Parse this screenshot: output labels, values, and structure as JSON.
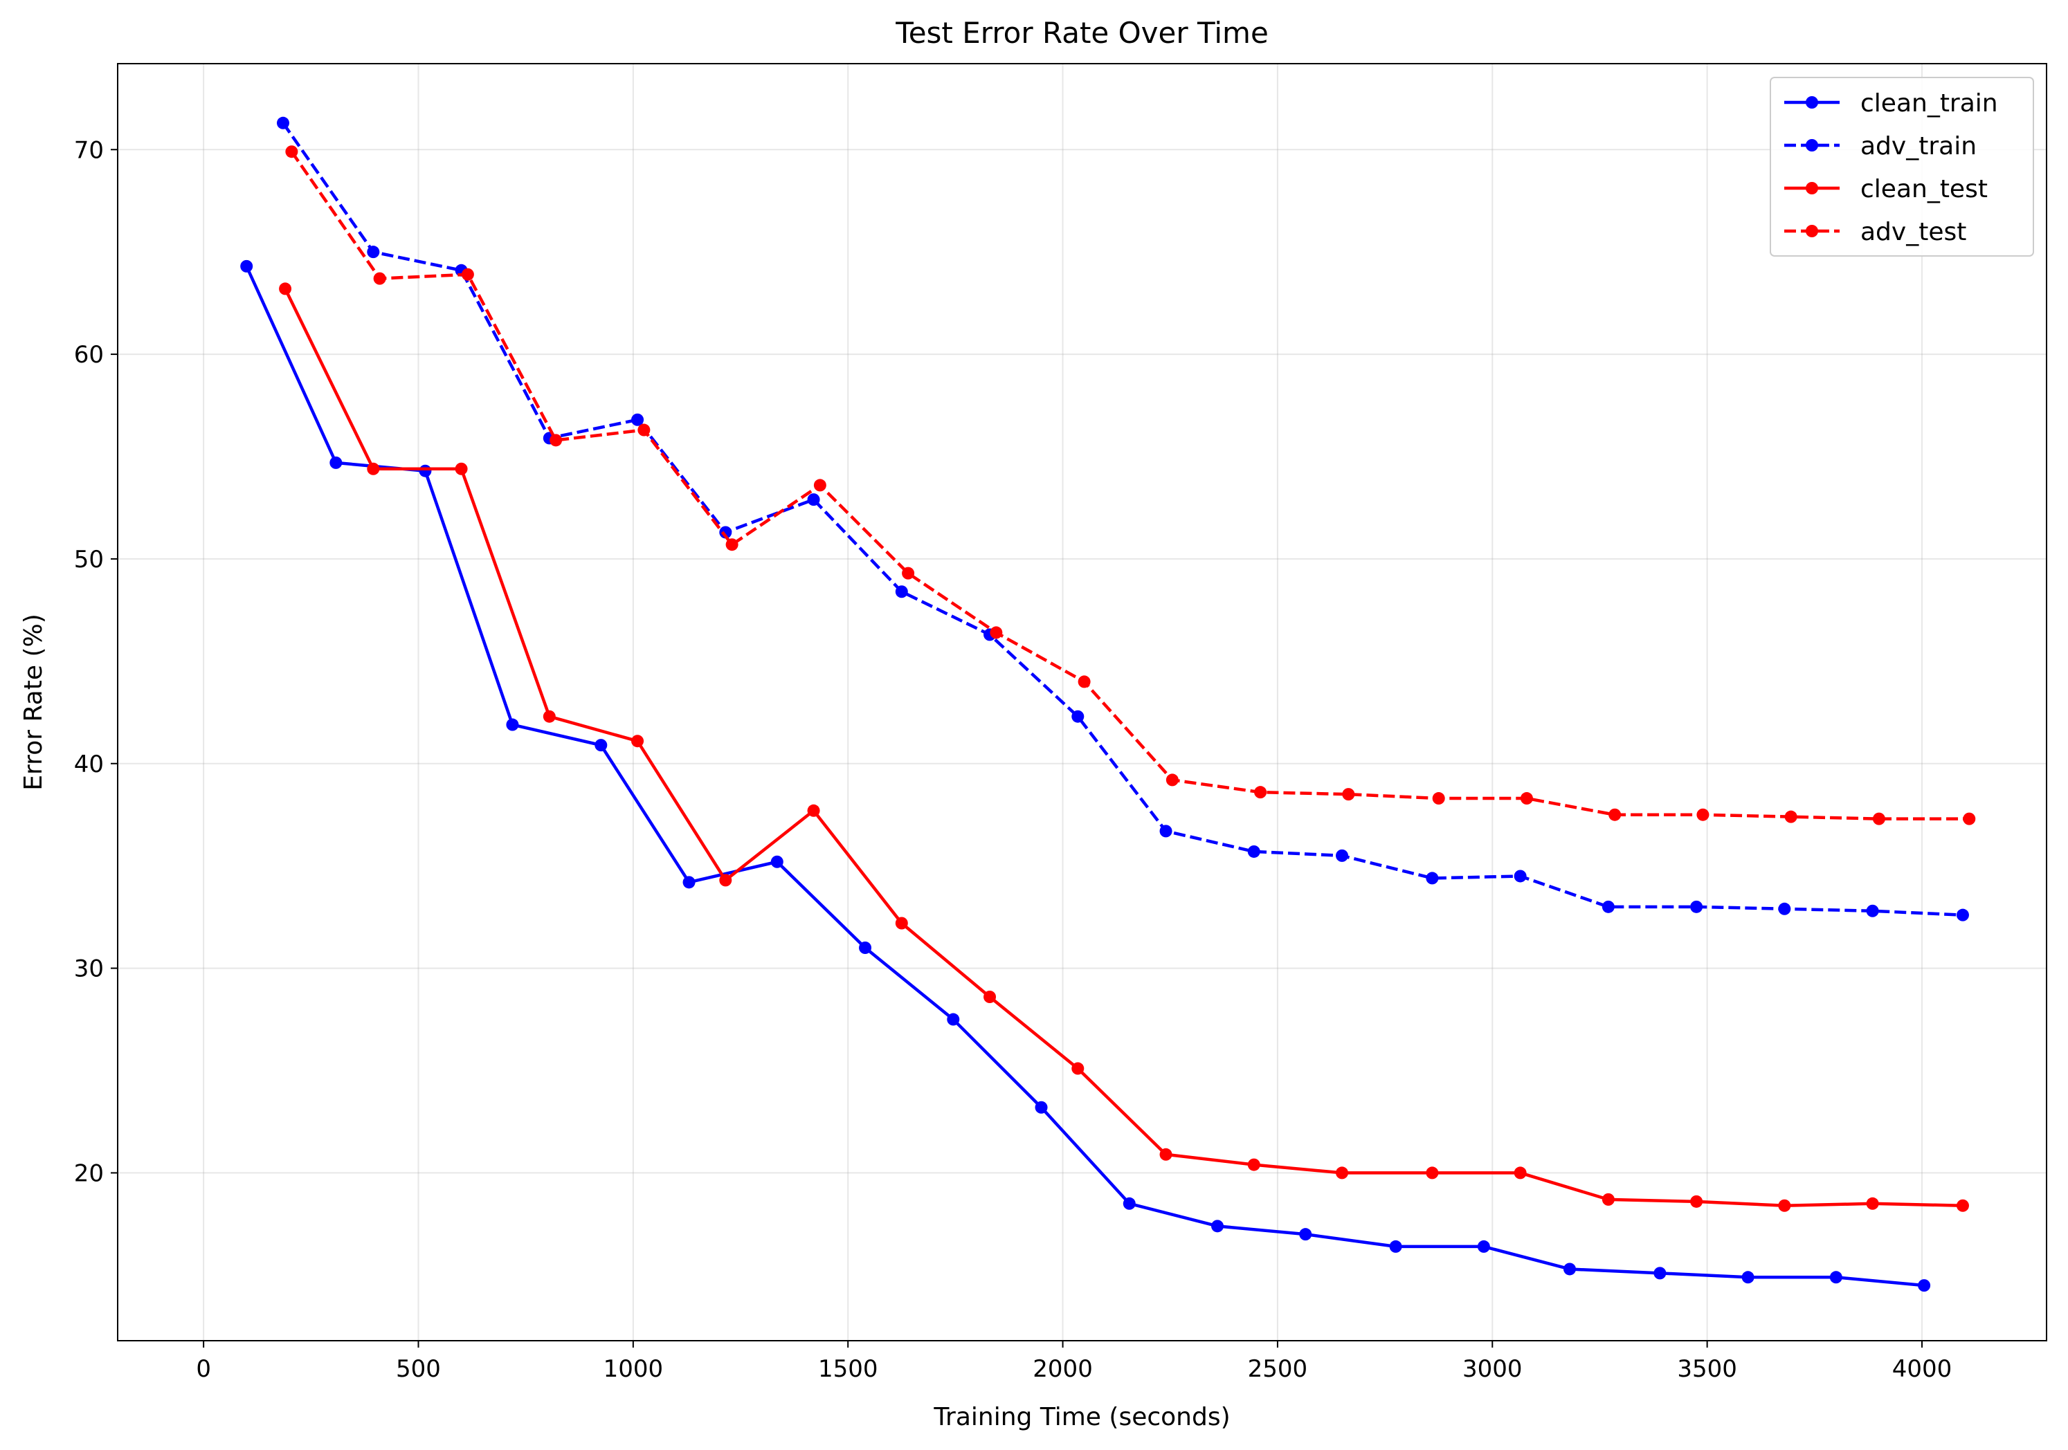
{
  "chart_data": {
    "type": "line",
    "title": "Test Error Rate Over Time",
    "xlabel": "Training Time (seconds)",
    "ylabel": "Error Rate (%)",
    "xlim": [
      -200,
      4290
    ],
    "ylim": [
      11.8,
      74.2
    ],
    "xticks": [
      0,
      500,
      1000,
      1500,
      2000,
      2500,
      3000,
      3500,
      4000
    ],
    "yticks": [
      20,
      30,
      40,
      50,
      60,
      70
    ],
    "grid": true,
    "legend_position": "top-right",
    "series": [
      {
        "name": "clean_train",
        "color": "#0000ff",
        "linestyle": "solid",
        "x": [
          100,
          308,
          516,
          719,
          925,
          1130,
          1335,
          1540,
          1745,
          1950,
          2155,
          2360,
          2565,
          2775,
          2980,
          3180,
          3390,
          3595,
          3800,
          4005
        ],
        "y": [
          64.3,
          54.7,
          54.3,
          41.9,
          40.9,
          34.2,
          35.2,
          31.0,
          27.5,
          23.2,
          18.5,
          17.4,
          17.0,
          16.4,
          16.4,
          15.3,
          15.1,
          14.9,
          14.9,
          14.5
        ]
      },
      {
        "name": "adv_train",
        "color": "#0000ff",
        "linestyle": "dashed",
        "x": [
          185,
          395,
          600,
          805,
          1010,
          1215,
          1420,
          1625,
          1830,
          2035,
          2240,
          2445,
          2650,
          2860,
          3065,
          3270,
          3475,
          3680,
          3885,
          4095
        ],
        "y": [
          71.3,
          65.0,
          64.1,
          55.9,
          56.8,
          51.3,
          52.9,
          48.4,
          46.3,
          42.3,
          36.7,
          35.7,
          35.5,
          34.4,
          34.5,
          33.0,
          33.0,
          32.9,
          32.8,
          32.6
        ]
      },
      {
        "name": "clean_test",
        "color": "#ff0000",
        "linestyle": "solid",
        "x": [
          190,
          395,
          600,
          805,
          1010,
          1215,
          1420,
          1625,
          1830,
          2035,
          2240,
          2445,
          2650,
          2860,
          3065,
          3270,
          3475,
          3680,
          3885,
          4095
        ],
        "y": [
          63.2,
          54.4,
          54.4,
          42.3,
          41.1,
          34.3,
          37.7,
          32.2,
          28.6,
          25.1,
          20.9,
          20.4,
          20.0,
          20.0,
          20.0,
          18.7,
          18.6,
          18.4,
          18.5,
          18.4
        ]
      },
      {
        "name": "adv_test",
        "color": "#ff0000",
        "linestyle": "dashed",
        "x": [
          205,
          410,
          615,
          820,
          1025,
          1230,
          1435,
          1640,
          1845,
          2050,
          2255,
          2460,
          2665,
          2875,
          3080,
          3285,
          3490,
          3695,
          3900,
          4110
        ],
        "y": [
          69.9,
          63.7,
          63.9,
          55.8,
          56.3,
          50.7,
          53.6,
          49.3,
          46.4,
          44.0,
          39.2,
          38.6,
          38.5,
          38.3,
          38.3,
          37.5,
          37.5,
          37.4,
          37.3,
          37.3
        ]
      }
    ]
  }
}
